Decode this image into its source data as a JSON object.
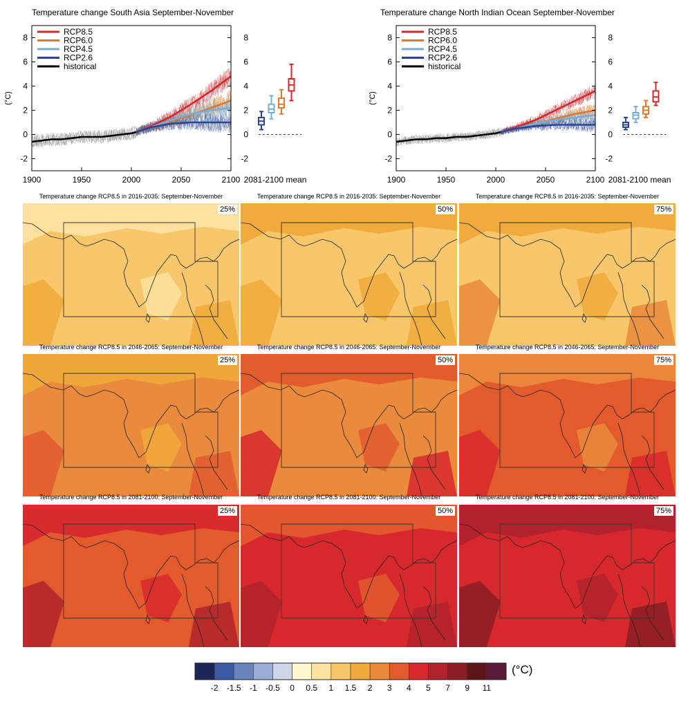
{
  "colors": {
    "rcp85": "#d0282d",
    "rcp60": "#e0782d",
    "rcp45": "#73afd8",
    "rcp26": "#2b4590",
    "historical": "#000000",
    "spread": "#8c8c8c"
  },
  "scale": {
    "labels": [
      "-2",
      "-1.5",
      "-1",
      "-0.5",
      "0",
      "0.5",
      "1",
      "1.5",
      "2",
      "3",
      "4",
      "5",
      "7",
      "9",
      "11"
    ],
    "colors": [
      "#1b2654",
      "#3b5aa3",
      "#6a85bb",
      "#99acd2",
      "#cdd5e6",
      "#fff7d0",
      "#fde2a0",
      "#f8c76b",
      "#f0a93a",
      "#ea8a3c",
      "#e35a2d",
      "#d7292d",
      "#b1222c",
      "#8a1d24",
      "#5e1517",
      "#5a1a3a"
    ],
    "unit": "(°C)"
  },
  "chart_data": [
    {
      "type": "line",
      "title": "Temperature change South Asia September-November",
      "ylabel": "(°C)",
      "xlim": [
        1900,
        2100
      ],
      "ylim": [
        -3,
        9
      ],
      "x_ticks": [
        "1900",
        "1950",
        "2000",
        "2050",
        "2100"
      ],
      "y_ticks": [
        "-2",
        "0",
        "2",
        "4",
        "6",
        "8"
      ],
      "legend": [
        "RCP8.5",
        "RCP6.0",
        "RCP4.5",
        "RCP2.6",
        "historical"
      ],
      "boxes_label": "2081-2100 mean",
      "series": [
        {
          "name": "historical",
          "x": [
            1900,
            1910,
            1920,
            1930,
            1940,
            1950,
            1960,
            1970,
            1980,
            1990,
            2000,
            2005
          ],
          "y": [
            -0.6,
            -0.5,
            -0.4,
            -0.4,
            -0.3,
            -0.2,
            -0.2,
            -0.2,
            -0.1,
            0.0,
            0.1,
            0.2
          ]
        },
        {
          "name": "RCP8.5",
          "x": [
            2005,
            2020,
            2040,
            2060,
            2080,
            2100
          ],
          "y": [
            0.2,
            0.7,
            1.5,
            2.5,
            3.6,
            4.8
          ]
        },
        {
          "name": "RCP6.0",
          "x": [
            2005,
            2020,
            2040,
            2060,
            2080,
            2100
          ],
          "y": [
            0.2,
            0.6,
            1.1,
            1.6,
            2.2,
            2.8
          ]
        },
        {
          "name": "RCP4.5",
          "x": [
            2005,
            2020,
            2040,
            2060,
            2080,
            2100
          ],
          "y": [
            0.2,
            0.6,
            1.2,
            1.7,
            2.0,
            2.2
          ]
        },
        {
          "name": "RCP2.6",
          "x": [
            2005,
            2020,
            2040,
            2060,
            2080,
            2100
          ],
          "y": [
            0.2,
            0.6,
            0.9,
            1.0,
            1.0,
            1.0
          ]
        }
      ],
      "boxes": [
        {
          "name": "RCP2.6",
          "min": 0.4,
          "q1": 0.8,
          "median": 1.1,
          "q3": 1.4,
          "max": 1.9
        },
        {
          "name": "RCP4.5",
          "min": 1.3,
          "q1": 1.8,
          "median": 2.1,
          "q3": 2.5,
          "max": 3.2
        },
        {
          "name": "RCP6.0",
          "min": 1.7,
          "q1": 2.2,
          "median": 2.5,
          "q3": 3.0,
          "max": 3.7
        },
        {
          "name": "RCP8.5",
          "min": 2.8,
          "q1": 3.6,
          "median": 4.1,
          "q3": 4.6,
          "max": 5.8
        }
      ]
    },
    {
      "type": "line",
      "title": "Temperature change North Indian Ocean September-November",
      "ylabel": "(°C)",
      "xlim": [
        1900,
        2100
      ],
      "ylim": [
        -3,
        9
      ],
      "x_ticks": [
        "1900",
        "1950",
        "2000",
        "2050",
        "2100"
      ],
      "y_ticks": [
        "-2",
        "0",
        "2",
        "4",
        "6",
        "8"
      ],
      "legend": [
        "RCP8.5",
        "RCP6.0",
        "RCP4.5",
        "RCP2.6",
        "historical"
      ],
      "boxes_label": "2081-2100 mean",
      "series": [
        {
          "name": "historical",
          "x": [
            1900,
            1910,
            1920,
            1930,
            1940,
            1950,
            1960,
            1970,
            1980,
            1990,
            2000,
            2005
          ],
          "y": [
            -0.6,
            -0.5,
            -0.4,
            -0.4,
            -0.3,
            -0.3,
            -0.2,
            -0.2,
            -0.1,
            0.0,
            0.1,
            0.2
          ]
        },
        {
          "name": "RCP8.5",
          "x": [
            2005,
            2020,
            2040,
            2060,
            2080,
            2100
          ],
          "y": [
            0.2,
            0.6,
            1.2,
            2.0,
            2.8,
            3.6
          ]
        },
        {
          "name": "RCP6.0",
          "x": [
            2005,
            2020,
            2040,
            2060,
            2080,
            2100
          ],
          "y": [
            0.2,
            0.5,
            0.9,
            1.3,
            1.7,
            2.0
          ]
        },
        {
          "name": "RCP4.5",
          "x": [
            2005,
            2020,
            2040,
            2060,
            2080,
            2100
          ],
          "y": [
            0.2,
            0.5,
            0.9,
            1.2,
            1.4,
            1.6
          ]
        },
        {
          "name": "RCP2.6",
          "x": [
            2005,
            2020,
            2040,
            2060,
            2080,
            2100
          ],
          "y": [
            0.2,
            0.5,
            0.7,
            0.8,
            0.8,
            0.8
          ]
        }
      ],
      "boxes": [
        {
          "name": "RCP2.6",
          "min": 0.4,
          "q1": 0.6,
          "median": 0.8,
          "q3": 1.0,
          "max": 1.4
        },
        {
          "name": "RCP4.5",
          "min": 1.0,
          "q1": 1.3,
          "median": 1.6,
          "q3": 1.8,
          "max": 2.3
        },
        {
          "name": "RCP6.0",
          "min": 1.4,
          "q1": 1.7,
          "median": 2.0,
          "q3": 2.3,
          "max": 2.8
        },
        {
          "name": "RCP8.5",
          "min": 2.4,
          "q1": 2.7,
          "median": 3.1,
          "q3": 3.6,
          "max": 4.3
        }
      ]
    },
    {
      "type": "heatmap",
      "panels": [
        {
          "title": "Temperature change RCP8.5 in 2016-2035: September-November",
          "percentile": "25%",
          "base": "1",
          "patches": [
            "0.5",
            "1.5"
          ]
        },
        {
          "title": "Temperature change RCP8.5 in 2016-2035: September-November",
          "percentile": "50%",
          "base": "1",
          "patches": [
            "1.5",
            "1.5"
          ]
        },
        {
          "title": "Temperature change RCP8.5 in 2016-2035: September-November",
          "percentile": "75%",
          "base": "1",
          "patches": [
            "1.5",
            "2"
          ]
        },
        {
          "title": "Temperature change RCP8.5 in 2046-2065: September-November",
          "percentile": "25%",
          "base": "2",
          "patches": [
            "1.5",
            "3"
          ]
        },
        {
          "title": "Temperature change RCP8.5 in 2046-2065: September-November",
          "percentile": "50%",
          "base": "2",
          "patches": [
            "3",
            "4"
          ]
        },
        {
          "title": "Temperature change RCP8.5 in 2046-2065: September-November",
          "percentile": "75%",
          "base": "3",
          "patches": [
            "2",
            "4"
          ]
        },
        {
          "title": "Temperature change RCP8.5 in 2081-2100: September-November",
          "percentile": "25%",
          "base": "3",
          "patches": [
            "4",
            "5"
          ]
        },
        {
          "title": "Temperature change RCP8.5 in 2081-2100: September-November",
          "percentile": "50%",
          "base": "4",
          "patches": [
            "3",
            "5"
          ]
        },
        {
          "title": "Temperature change RCP8.5 in 2081-2100: September-November",
          "percentile": "75%",
          "base": "4",
          "patches": [
            "5",
            "7"
          ]
        }
      ]
    }
  ]
}
